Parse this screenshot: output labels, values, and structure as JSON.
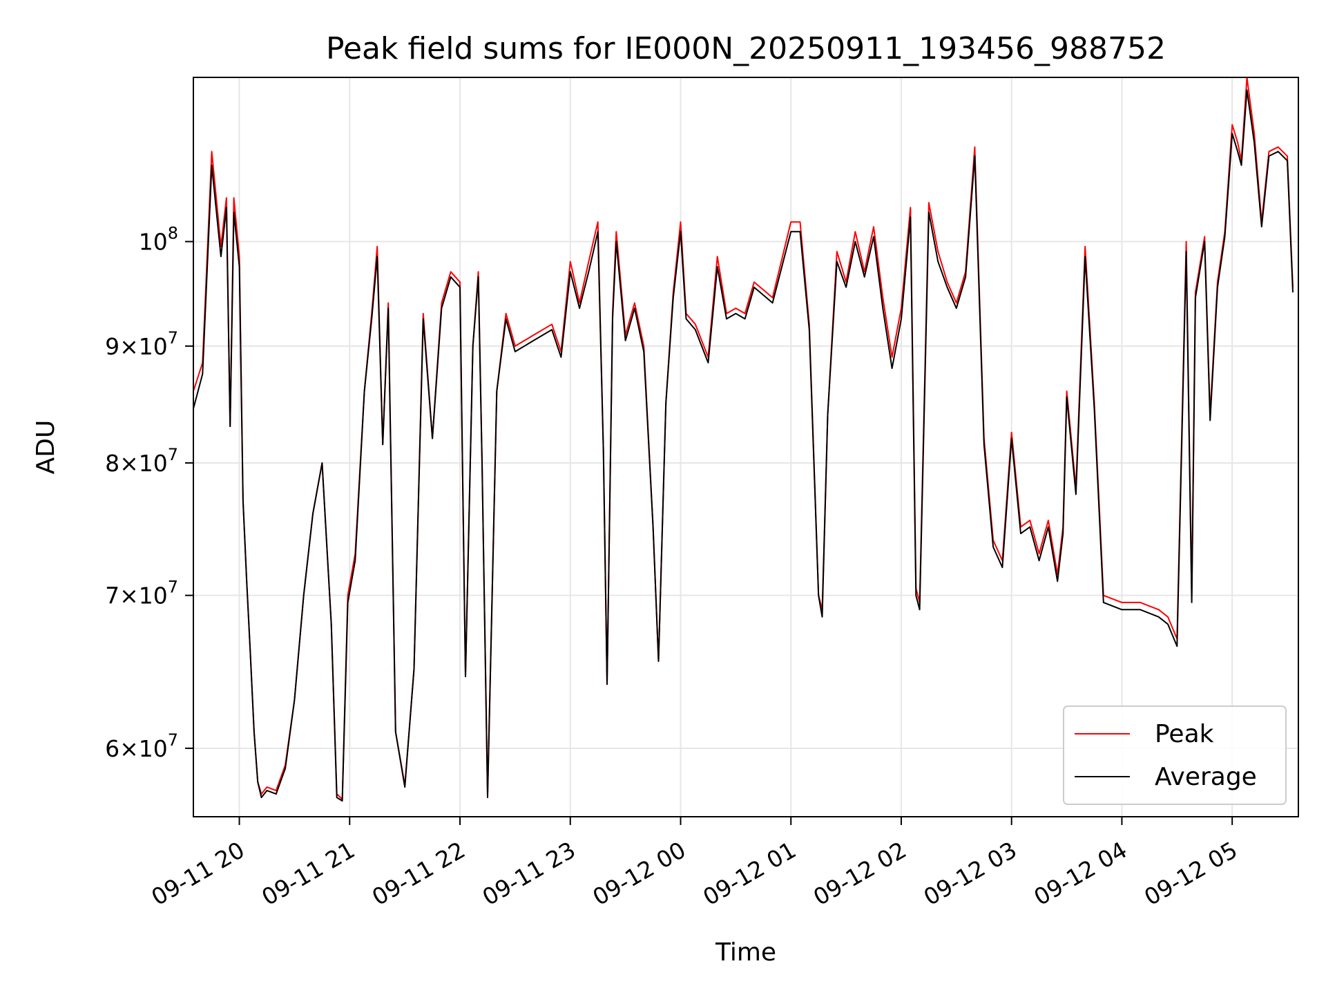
{
  "chart_data": {
    "type": "line",
    "title": "Peak field sums for IE000N_20250911_193456_988752",
    "xlabel": "Time",
    "ylabel": "ADU",
    "y_scale": "log",
    "ylim": [
      56000000,
      118000000
    ],
    "xlim": [
      "2025-09-11 19:35",
      "2025-09-12 05:36"
    ],
    "grid": true,
    "legend_position": "lower-right",
    "x_ticks": [
      {
        "t": "2025-09-11 20:00",
        "label": "09-11 20"
      },
      {
        "t": "2025-09-11 21:00",
        "label": "09-11 21"
      },
      {
        "t": "2025-09-11 22:00",
        "label": "09-11 22"
      },
      {
        "t": "2025-09-11 23:00",
        "label": "09-11 23"
      },
      {
        "t": "2025-09-12 00:00",
        "label": "09-12 00"
      },
      {
        "t": "2025-09-12 01:00",
        "label": "09-12 01"
      },
      {
        "t": "2025-09-12 02:00",
        "label": "09-12 02"
      },
      {
        "t": "2025-09-12 03:00",
        "label": "09-12 03"
      },
      {
        "t": "2025-09-12 04:00",
        "label": "09-12 04"
      },
      {
        "t": "2025-09-12 05:00",
        "label": "09-12 05"
      }
    ],
    "y_ticks": [
      {
        "value": 60000000,
        "mantissa": "6",
        "exponent": "7"
      },
      {
        "value": 70000000,
        "mantissa": "7",
        "exponent": "7"
      },
      {
        "value": 80000000,
        "mantissa": "8",
        "exponent": "7"
      },
      {
        "value": 90000000,
        "mantissa": "9",
        "exponent": "7"
      },
      {
        "value": 100000000,
        "mantissa": "",
        "exponent": "8"
      }
    ],
    "series": [
      {
        "name": "Peak",
        "color": "#ff0000"
      },
      {
        "name": "Average",
        "color": "#000000"
      }
    ],
    "x": [
      "2025-09-11 19:35",
      "2025-09-11 19:40",
      "2025-09-11 19:45",
      "2025-09-11 19:50",
      "2025-09-11 19:53",
      "2025-09-11 19:55",
      "2025-09-11 19:57",
      "2025-09-11 20:00",
      "2025-09-11 20:02",
      "2025-09-11 20:04",
      "2025-09-11 20:06",
      "2025-09-11 20:08",
      "2025-09-11 20:10",
      "2025-09-11 20:12",
      "2025-09-11 20:15",
      "2025-09-11 20:20",
      "2025-09-11 20:25",
      "2025-09-11 20:30",
      "2025-09-11 20:35",
      "2025-09-11 20:40",
      "2025-09-11 20:45",
      "2025-09-11 20:50",
      "2025-09-11 20:53",
      "2025-09-11 20:56",
      "2025-09-11 20:59",
      "2025-09-11 21:03",
      "2025-09-11 21:08",
      "2025-09-11 21:12",
      "2025-09-11 21:15",
      "2025-09-11 21:18",
      "2025-09-11 21:21",
      "2025-09-11 21:25",
      "2025-09-11 21:30",
      "2025-09-11 21:35",
      "2025-09-11 21:40",
      "2025-09-11 21:45",
      "2025-09-11 21:50",
      "2025-09-11 21:55",
      "2025-09-11 22:00",
      "2025-09-11 22:03",
      "2025-09-11 22:07",
      "2025-09-11 22:10",
      "2025-09-11 22:12",
      "2025-09-11 22:15",
      "2025-09-11 22:20",
      "2025-09-11 22:25",
      "2025-09-11 22:30",
      "2025-09-11 22:40",
      "2025-09-11 22:50",
      "2025-09-11 22:55",
      "2025-09-11 23:00",
      "2025-09-11 23:05",
      "2025-09-11 23:10",
      "2025-09-11 23:15",
      "2025-09-11 23:18",
      "2025-09-11 23:20",
      "2025-09-11 23:23",
      "2025-09-11 23:25",
      "2025-09-11 23:30",
      "2025-09-11 23:35",
      "2025-09-11 23:40",
      "2025-09-11 23:45",
      "2025-09-11 23:48",
      "2025-09-11 23:52",
      "2025-09-11 23:56",
      "2025-09-12 00:00",
      "2025-09-12 00:03",
      "2025-09-12 00:08",
      "2025-09-12 00:15",
      "2025-09-12 00:20",
      "2025-09-12 00:25",
      "2025-09-12 00:30",
      "2025-09-12 00:35",
      "2025-09-12 00:40",
      "2025-09-12 00:50",
      "2025-09-12 01:00",
      "2025-09-12 01:05",
      "2025-09-12 01:10",
      "2025-09-12 01:15",
      "2025-09-12 01:17",
      "2025-09-12 01:20",
      "2025-09-12 01:25",
      "2025-09-12 01:30",
      "2025-09-12 01:35",
      "2025-09-12 01:40",
      "2025-09-12 01:45",
      "2025-09-12 01:50",
      "2025-09-12 01:55",
      "2025-09-12 02:00",
      "2025-09-12 02:05",
      "2025-09-12 02:08",
      "2025-09-12 02:10",
      "2025-09-12 02:15",
      "2025-09-12 02:20",
      "2025-09-12 02:25",
      "2025-09-12 02:30",
      "2025-09-12 02:35",
      "2025-09-12 02:40",
      "2025-09-12 02:45",
      "2025-09-12 02:50",
      "2025-09-12 02:55",
      "2025-09-12 03:00",
      "2025-09-12 03:05",
      "2025-09-12 03:10",
      "2025-09-12 03:15",
      "2025-09-12 03:20",
      "2025-09-12 03:25",
      "2025-09-12 03:28",
      "2025-09-12 03:30",
      "2025-09-12 03:35",
      "2025-09-12 03:40",
      "2025-09-12 03:45",
      "2025-09-12 03:50",
      "2025-09-12 04:00",
      "2025-09-12 04:10",
      "2025-09-12 04:20",
      "2025-09-12 04:25",
      "2025-09-12 04:30",
      "2025-09-12 04:35",
      "2025-09-12 04:38",
      "2025-09-12 04:40",
      "2025-09-12 04:45",
      "2025-09-12 04:48",
      "2025-09-12 04:52",
      "2025-09-12 04:56",
      "2025-09-12 05:00",
      "2025-09-12 05:03",
      "2025-09-12 05:05",
      "2025-09-12 05:08",
      "2025-09-12 05:12",
      "2025-09-12 05:16",
      "2025-09-12 05:20",
      "2025-09-12 05:25",
      "2025-09-12 05:30",
      "2025-09-12 05:33",
      "2025-09-12 05:36"
    ],
    "peak": [
      86000000,
      88500000,
      109500000,
      99500000,
      104500000,
      83000000,
      104500000,
      98500000,
      77000000,
      71000000,
      66000000,
      61000000,
      58000000,
      57300000,
      57700000,
      57500000,
      59000000,
      63000000,
      70000000,
      76000000,
      80000000,
      68000000,
      57300000,
      57000000,
      70000000,
      73000000,
      86000000,
      93000000,
      99500000,
      81500000,
      94000000,
      61000000,
      57800000,
      65000000,
      93000000,
      82000000,
      94000000,
      97000000,
      96000000,
      64500000,
      90000000,
      97000000,
      80000000,
      57300000,
      86000000,
      93000000,
      90000000,
      91000000,
      92000000,
      89500000,
      98000000,
      94000000,
      98000000,
      102000000,
      81000000,
      64000000,
      93000000,
      101000000,
      91000000,
      94000000,
      90000000,
      75000000,
      65500000,
      85000000,
      95000000,
      102000000,
      93000000,
      92000000,
      89000000,
      98500000,
      93000000,
      93500000,
      93000000,
      96000000,
      94500000,
      102000000,
      102000000,
      92000000,
      70000000,
      69000000,
      84000000,
      99000000,
      96000000,
      101000000,
      97000000,
      101500000,
      94500000,
      89000000,
      93500000,
      103500000,
      70500000,
      69500000,
      104000000,
      99000000,
      96000000,
      94000000,
      97000000,
      110000000,
      82000000,
      74000000,
      72500000,
      82500000,
      75000000,
      75500000,
      73000000,
      75500000,
      71500000,
      75000000,
      86000000,
      78000000,
      99500000,
      85000000,
      70000000,
      69500000,
      69500000,
      69000000,
      68500000,
      67000000,
      100000000,
      70000000,
      95000000,
      100500000,
      84000000,
      96000000,
      101000000,
      112500000,
      110500000,
      108500000,
      118000000,
      111500000,
      102000000,
      109500000,
      110000000,
      109000000,
      95500000
    ],
    "average": [
      84500000,
      87500000,
      108000000,
      98500000,
      103500000,
      83000000,
      103000000,
      97500000,
      77000000,
      71000000,
      66000000,
      61000000,
      58000000,
      57100000,
      57500000,
      57300000,
      58800000,
      63000000,
      70000000,
      76000000,
      80000000,
      68000000,
      57100000,
      56900000,
      69500000,
      72500000,
      86000000,
      92500000,
      98500000,
      81500000,
      93500000,
      61000000,
      57700000,
      65000000,
      92500000,
      82000000,
      93500000,
      96500000,
      95500000,
      64500000,
      90000000,
      96500000,
      80000000,
      57100000,
      86000000,
      92500000,
      89500000,
      90500000,
      91500000,
      89000000,
      97000000,
      93500000,
      97000000,
      101000000,
      81000000,
      64000000,
      92500000,
      100000000,
      90500000,
      93500000,
      89500000,
      75000000,
      65500000,
      85000000,
      94500000,
      101000000,
      92500000,
      91500000,
      88500000,
      97500000,
      92500000,
      93000000,
      92500000,
      95500000,
      94000000,
      101000000,
      101000000,
      91500000,
      70000000,
      68500000,
      84000000,
      98000000,
      95500000,
      100000000,
      96500000,
      100500000,
      93500000,
      88000000,
      92500000,
      102500000,
      70000000,
      69000000,
      103000000,
      98000000,
      95500000,
      93500000,
      96500000,
      109000000,
      81500000,
      73500000,
      72000000,
      82000000,
      74500000,
      75000000,
      72500000,
      75000000,
      71000000,
      74500000,
      85500000,
      77500000,
      98500000,
      84500000,
      69500000,
      69000000,
      69000000,
      68500000,
      68000000,
      66500000,
      99000000,
      69500000,
      94500000,
      100000000,
      83500000,
      95500000,
      100500000,
      111500000,
      109500000,
      108000000,
      116500000,
      110500000,
      101500000,
      109000000,
      109500000,
      108500000,
      95000000
    ]
  }
}
